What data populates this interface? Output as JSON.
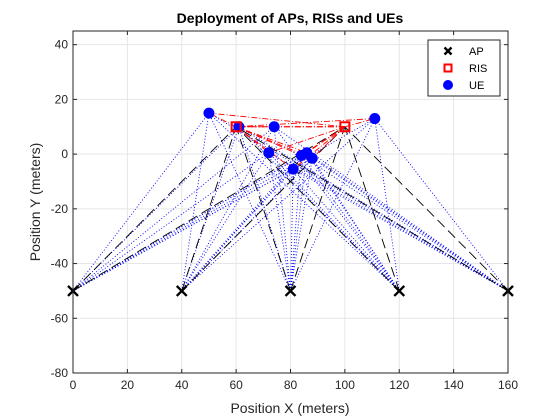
{
  "chart_data": {
    "type": "scatter",
    "title": "Deployment of APs, RISs and UEs",
    "xlabel": "Position X (meters)",
    "ylabel": "Position Y (meters)",
    "xlim": [
      0,
      160
    ],
    "ylim": [
      -80,
      45
    ],
    "xticks": [
      0,
      20,
      40,
      60,
      80,
      100,
      120,
      140,
      160
    ],
    "yticks": [
      -80,
      -60,
      -40,
      -20,
      0,
      20,
      40
    ],
    "grid": true,
    "legend_position": "top-right",
    "colors": {
      "ap": "#000000",
      "ris": "#ff0000",
      "ue": "#0000ff",
      "grid": "#e6e6e6",
      "axis": "#262626"
    },
    "series": [
      {
        "name": "AP",
        "marker": "x",
        "points": [
          [
            0,
            -50
          ],
          [
            40,
            -50
          ],
          [
            80,
            -50
          ],
          [
            120,
            -50
          ],
          [
            160,
            -50
          ]
        ]
      },
      {
        "name": "RIS",
        "marker": "square",
        "points": [
          [
            60,
            10
          ],
          [
            100,
            10
          ]
        ]
      },
      {
        "name": "UE",
        "marker": "circle",
        "points": [
          [
            50,
            15
          ],
          [
            74,
            10
          ],
          [
            61,
            10
          ],
          [
            72,
            0.5
          ],
          [
            84,
            -0.5
          ],
          [
            86,
            0.5
          ],
          [
            88,
            -1.5
          ],
          [
            81,
            -5.5
          ],
          [
            111,
            13
          ]
        ]
      }
    ],
    "links": {
      "ap_ris_style": "black long-dash",
      "ap_ue_style": "blue dotted",
      "ris_ue_style": "red dash-dot"
    }
  }
}
